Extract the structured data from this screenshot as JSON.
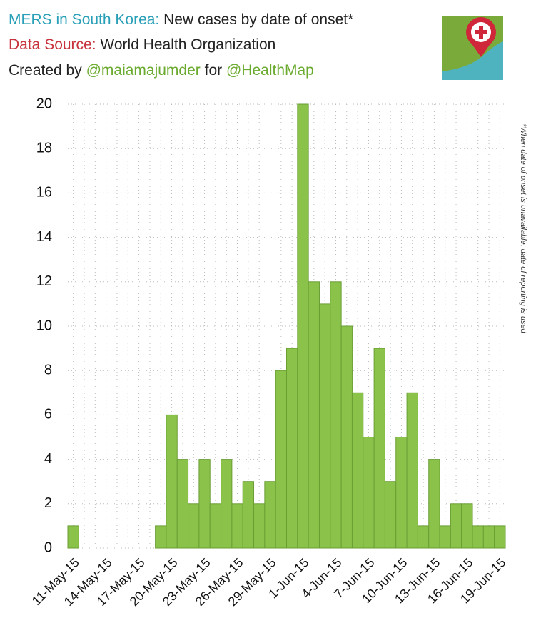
{
  "chart_data": {
    "type": "bar",
    "title": {
      "lead": "MERS in South Korea:",
      "text": "New cases by date of onset*"
    },
    "source": {
      "lead": "Data Source:",
      "text": "World Health Organization"
    },
    "credit": {
      "pre": "Created by",
      "author": "@maiamajumder",
      "mid": "for",
      "org": "@HealthMap"
    },
    "note": "*When date of onset is unavailable, date of reporting is used",
    "categories": [
      "11-May-15",
      null,
      null,
      "14-May-15",
      null,
      null,
      "17-May-15",
      null,
      null,
      "20-May-15",
      null,
      null,
      "23-May-15",
      null,
      null,
      "26-May-15",
      null,
      null,
      "29-May-15",
      null,
      null,
      "1-Jun-15",
      null,
      null,
      "4-Jun-15",
      null,
      null,
      "7-Jun-15",
      null,
      null,
      "10-Jun-15",
      null,
      null,
      "13-Jun-15",
      null,
      null,
      "16-Jun-15",
      null,
      null,
      "19-Jun-15"
    ],
    "values": [
      1,
      0,
      0,
      0,
      0,
      0,
      0,
      0,
      1,
      6,
      4,
      2,
      4,
      2,
      4,
      2,
      3,
      2,
      3,
      8,
      9,
      20,
      12,
      11,
      12,
      10,
      7,
      5,
      9,
      3,
      5,
      7,
      1,
      4,
      1,
      2,
      2,
      1,
      1,
      1
    ],
    "color": "#8bc34a",
    "ylim": [
      0,
      20
    ],
    "yticks": [
      0,
      2,
      4,
      6,
      8,
      10,
      12,
      14,
      16,
      18,
      20
    ],
    "grid": true
  }
}
